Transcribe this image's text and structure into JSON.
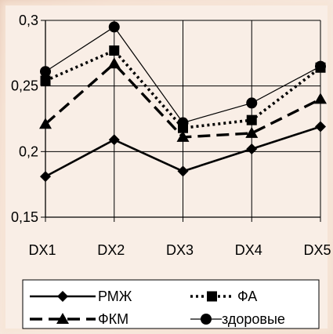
{
  "chart_data": {
    "type": "line",
    "categories": [
      "DX1",
      "DX2",
      "DX3",
      "DX4",
      "DX5"
    ],
    "y_ticks": [
      "0,3",
      "0,25",
      "0,2",
      "0,15"
    ],
    "ylim": [
      0.15,
      0.3
    ],
    "grid": true,
    "legend_position": "bottom",
    "series": [
      {
        "name": "РМЖ",
        "values": [
          0.181,
          0.209,
          0.185,
          0.202,
          0.219
        ],
        "marker": "diamond",
        "dash": "solid",
        "color": "#000000"
      },
      {
        "name": "ФА",
        "values": [
          0.254,
          0.277,
          0.218,
          0.224,
          0.264
        ],
        "marker": "square",
        "dash": "dotted",
        "color": "#000000"
      },
      {
        "name": "ФКМ",
        "values": [
          0.221,
          0.267,
          0.211,
          0.214,
          0.24
        ],
        "marker": "triangle",
        "dash": "dashed",
        "color": "#000000"
      },
      {
        "name": "здоровые",
        "values": [
          0.261,
          0.295,
          0.222,
          0.237,
          0.265
        ],
        "marker": "circle",
        "dash": "solid-thin",
        "color": "#000000"
      }
    ]
  }
}
